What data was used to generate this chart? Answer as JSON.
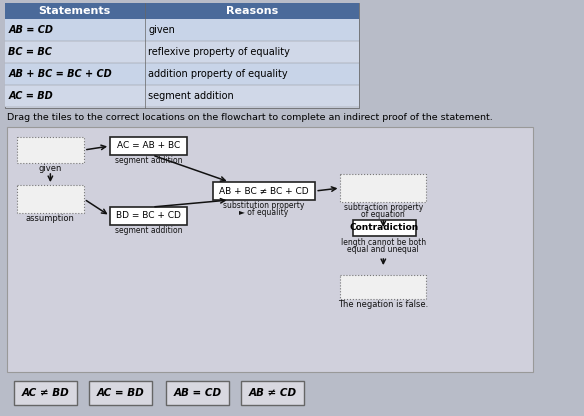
{
  "bg_color": "#b8bcc8",
  "table_bg": "#d0d8e8",
  "table_header_bg": "#4a6a9a",
  "table_header_text": "#ffffff",
  "table_rows": [
    [
      "AB = CD",
      "given"
    ],
    [
      "BC = BC",
      "reflexive property of equality"
    ],
    [
      "AB + BC = BC + CD",
      "addition property of equality"
    ],
    [
      "AC = BD",
      "segment addition"
    ]
  ],
  "drag_text": "Drag the tiles to the correct locations on the flowchart to complete an indirect proof of the statement.",
  "node_bg": "#ffffff",
  "dashed_bg": "#f0f0f0",
  "tiles": [
    "AC ≠ BD",
    "AC = BD",
    "AB = CD",
    "AB ≠ CD"
  ],
  "tile_bg": "#d8d8e0",
  "tile_border": "#666666",
  "fc_bg": "#d0d0dc",
  "fc_border": "#999999"
}
